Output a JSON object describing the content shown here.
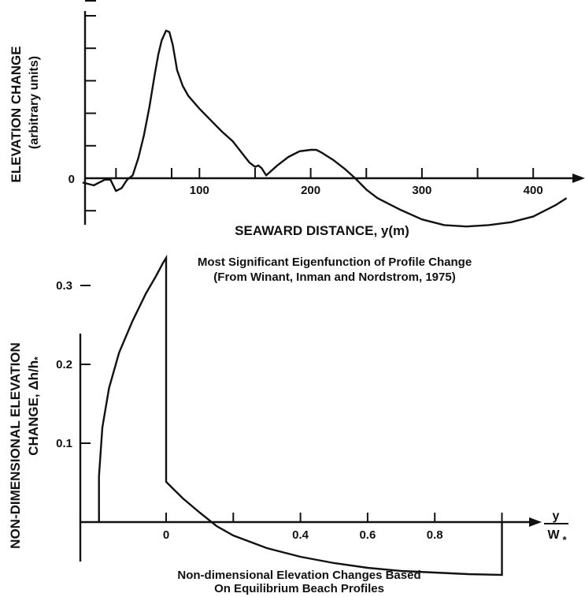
{
  "chart_data": [
    {
      "type": "line",
      "ylabel_line1": "ELEVATION CHANGE",
      "ylabel_line2": "(arbitrary units)",
      "xlabel": "SEAWARD DISTANCE, y(m)",
      "caption_line1": "Most Significant Eigenfunction of Profile Change",
      "caption_line2": "(From Winant, Inman and Nordstrom, 1975)",
      "x_ticks": [
        100,
        200,
        300,
        400
      ],
      "y_ticks_labeled": [
        0
      ],
      "xlim": [
        -5,
        440
      ],
      "series": [
        {
          "x": [
            -5,
            5,
            15,
            20,
            25,
            30,
            35,
            40,
            45,
            50,
            55,
            60,
            63,
            66,
            70,
            73,
            76,
            80,
            85,
            90,
            100,
            110,
            120,
            130,
            140,
            145,
            150,
            153,
            156,
            160,
            170,
            180,
            190,
            200,
            205,
            210,
            220,
            230,
            240,
            250,
            260,
            280,
            300,
            320,
            340,
            360,
            380,
            400,
            420,
            430
          ],
          "y": [
            -0.3,
            -0.5,
            -0.1,
            -0.1,
            -0.9,
            -0.7,
            -0.1,
            0.2,
            1.4,
            3.0,
            5.0,
            7.4,
            8.7,
            9.7,
            10.4,
            10.3,
            9.4,
            7.6,
            6.5,
            5.8,
            4.9,
            4.1,
            3.3,
            2.6,
            1.6,
            1.1,
            0.8,
            0.9,
            0.7,
            0.2,
            0.9,
            1.5,
            1.9,
            2.0,
            2.0,
            1.8,
            1.3,
            0.7,
            0.0,
            -0.8,
            -1.4,
            -2.2,
            -2.9,
            -3.3,
            -3.4,
            -3.3,
            -3.1,
            -2.7,
            -1.9,
            -1.4
          ]
        }
      ]
    },
    {
      "type": "line",
      "ylabel_line1": "NON-DIMENSIONAL ELEVATION",
      "ylabel_line2": "CHANGE, Δh/h",
      "ylabel_sub": "*",
      "xlabel_num": "y",
      "xlabel_den": "W",
      "xlabel_den_sub": "*",
      "caption_line1": "Non-dimensional Elevation Changes Based",
      "caption_line2": "On Equilibrium Beach Profiles",
      "x_ticks": [
        0,
        0.4,
        0.6,
        0.8
      ],
      "y_ticks": [
        0.1,
        0.2,
        0.3
      ],
      "xlim": [
        -0.5,
        1.1
      ],
      "ylim": [
        -0.12,
        0.36
      ],
      "series": [
        {
          "x": [
            -0.2,
            -0.2,
            -0.19,
            -0.17,
            -0.14,
            -0.1,
            -0.06,
            -0.03,
            -0.01,
            0,
            0,
            0,
            0.05,
            0.1,
            0.15,
            0.2,
            0.3,
            0.4,
            0.5,
            0.6,
            0.7,
            0.8,
            0.9,
            1.0,
            1.0
          ],
          "y": [
            0,
            0.058,
            0.12,
            0.17,
            0.215,
            0.255,
            0.29,
            0.312,
            0.328,
            0.335,
            0.335,
            0.051,
            0.03,
            0.012,
            -0.005,
            -0.017,
            -0.033,
            -0.044,
            -0.052,
            -0.058,
            -0.062,
            -0.064,
            -0.066,
            -0.067,
            0
          ]
        }
      ]
    }
  ]
}
